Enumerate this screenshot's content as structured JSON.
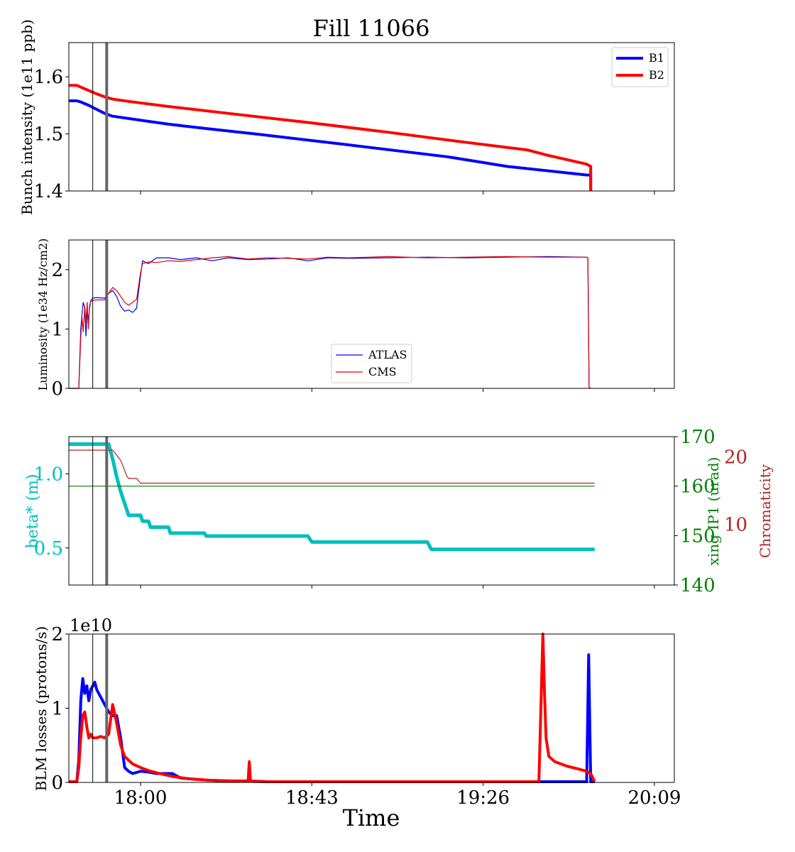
{
  "figure": {
    "title": "Fill 11066",
    "xlabel": "Time"
  },
  "x_axis": {
    "tick_labels": [
      "18:00",
      "18:43",
      "19:26",
      "20:09"
    ],
    "tick_minutes": [
      48,
      91,
      134,
      177
    ]
  },
  "colors": {
    "b1": "#0000ff",
    "b2": "#ff0000",
    "atlas": "#0000ff",
    "cms": "#dd0000",
    "beta": "#00bfbf",
    "xing": "#008000",
    "chroma": "#b22222",
    "marker_thin": "#000000",
    "marker_thick": "#666666"
  },
  "chart_data": [
    {
      "type": "line",
      "ylabel": "Bunch intensity (1e11 ppb)",
      "ylim": [
        1.4,
        1.66
      ],
      "yticks": [
        1.4,
        1.5,
        1.6
      ],
      "ytick_labels": [
        "1.4",
        "1.5",
        "1.6"
      ],
      "legend": {
        "placement": "top-right",
        "entries": [
          "B1",
          "B2"
        ]
      },
      "series": [
        {
          "name": "B1",
          "x": [
            30,
            32,
            33,
            35,
            37,
            39,
            41,
            45,
            49,
            55,
            65,
            78,
            100,
            125,
            133,
            140,
            160,
            161,
            161
          ],
          "y": [
            1.558,
            1.558,
            1.556,
            1.55,
            1.543,
            1.536,
            1.531,
            1.527,
            1.523,
            1.517,
            1.509,
            1.499,
            1.481,
            1.46,
            1.451,
            1.443,
            1.428,
            1.428,
            1.4
          ]
        },
        {
          "name": "B2",
          "x": [
            30,
            32,
            33,
            35,
            37,
            39,
            41,
            45,
            55,
            70,
            90,
            110,
            130,
            145,
            150,
            160,
            161,
            161
          ],
          "y": [
            1.585,
            1.585,
            1.582,
            1.576,
            1.57,
            1.565,
            1.561,
            1.557,
            1.548,
            1.536,
            1.52,
            1.503,
            1.485,
            1.472,
            1.463,
            1.447,
            1.443,
            1.4
          ]
        }
      ]
    },
    {
      "type": "line",
      "ylabel": "Luminosity (1e34 Hz/cm2)",
      "ylim": [
        0,
        2.5
      ],
      "yticks": [
        0,
        1,
        2
      ],
      "ytick_labels": [
        "0",
        "1",
        "2"
      ],
      "legend": {
        "placement": "lower-center",
        "entries": [
          "ATLAS",
          "CMS"
        ]
      },
      "series": [
        {
          "name": "ATLAS",
          "x": [
            30,
            32.5,
            33,
            33.3,
            33.6,
            34,
            34.3,
            34.6,
            34.9,
            35.2,
            35.5,
            36,
            37,
            39,
            40,
            41,
            42,
            43,
            44,
            45,
            46,
            47,
            48,
            48.5,
            50,
            52,
            55,
            58,
            62,
            66,
            70,
            75,
            80,
            85,
            90,
            95,
            100,
            110,
            120,
            130,
            140,
            150,
            160,
            160.3,
            160.6,
            161
          ],
          "y": [
            0,
            0,
            1.0,
            1.25,
            1.45,
            1.35,
            0.88,
            1.3,
            1.15,
            1.35,
            1.48,
            1.52,
            1.53,
            1.52,
            1.6,
            1.65,
            1.55,
            1.38,
            1.3,
            1.32,
            1.28,
            1.35,
            1.9,
            2.15,
            2.1,
            2.2,
            2.2,
            2.17,
            2.2,
            2.15,
            2.2,
            2.17,
            2.18,
            2.2,
            2.15,
            2.2,
            2.19,
            2.2,
            2.21,
            2.2,
            2.21,
            2.22,
            2.21,
            2.2,
            0.02,
            0
          ]
        },
        {
          "name": "CMS",
          "x": [
            30,
            32.5,
            33,
            33.3,
            33.6,
            34,
            34.3,
            34.6,
            34.9,
            35.2,
            35.5,
            36,
            37,
            39,
            40,
            41,
            42,
            43,
            44,
            45,
            46,
            47,
            48,
            48.5,
            50,
            52,
            55,
            58,
            62,
            66,
            70,
            75,
            80,
            85,
            90,
            95,
            100,
            110,
            120,
            130,
            140,
            150,
            160,
            160.3,
            160.6,
            161
          ],
          "y": [
            0,
            0,
            0.85,
            1.2,
            0.95,
            1.38,
            1.1,
            1.45,
            1.0,
            1.4,
            1.46,
            1.48,
            1.49,
            1.49,
            1.6,
            1.7,
            1.65,
            1.55,
            1.45,
            1.4,
            1.45,
            1.5,
            1.95,
            2.1,
            2.13,
            2.12,
            2.15,
            2.14,
            2.17,
            2.2,
            2.22,
            2.18,
            2.2,
            2.19,
            2.18,
            2.21,
            2.2,
            2.22,
            2.2,
            2.21,
            2.22,
            2.21,
            2.21,
            2.2,
            0.02,
            0
          ]
        }
      ]
    },
    {
      "type": "line",
      "ylabel": "beta* (m)",
      "ylim": [
        0.25,
        1.25
      ],
      "yticks": [
        0.5,
        1.0
      ],
      "ytick_labels": [
        "0.5",
        "1.0"
      ],
      "secondary_axes": [
        {
          "label": "xing IP1 (urad)",
          "ylim": [
            140,
            170
          ],
          "yticks": [
            140,
            150,
            160,
            170
          ],
          "ytick_labels": [
            "140",
            "150",
            "160",
            "170"
          ]
        },
        {
          "label": "Chromaticity",
          "ylim": [
            1,
            23
          ],
          "yticks": [
            10,
            20
          ],
          "ytick_labels": [
            "10",
            "20"
          ]
        }
      ],
      "series": [
        {
          "name": "beta*",
          "axis": "left",
          "x": [
            30,
            40,
            41,
            42,
            43,
            44,
            45,
            45.5,
            48,
            48.5,
            50,
            50.5,
            55,
            55.5,
            64,
            64.5,
            72,
            82,
            90,
            91,
            110,
            120,
            121,
            150,
            162
          ],
          "y": [
            1.2,
            1.2,
            1.1,
            0.98,
            0.88,
            0.8,
            0.72,
            0.72,
            0.72,
            0.68,
            0.68,
            0.64,
            0.64,
            0.6,
            0.6,
            0.58,
            0.58,
            0.58,
            0.58,
            0.54,
            0.54,
            0.54,
            0.49,
            0.49,
            0.49
          ]
        },
        {
          "name": "xing IP1",
          "axis": "right-1",
          "x": [
            30,
            162
          ],
          "y": [
            160,
            160
          ]
        },
        {
          "name": "Chromaticity",
          "axis": "right-2",
          "x": [
            30,
            41,
            43,
            44,
            44.5,
            45,
            47,
            48,
            162
          ],
          "y": [
            21,
            21,
            19.5,
            18,
            17.2,
            16.8,
            16.8,
            16.1,
            16.1
          ]
        }
      ]
    },
    {
      "type": "line",
      "ylabel": "BLM losses (protons/s)",
      "offset_text": "1e10",
      "ylim": [
        0,
        2
      ],
      "yticks": [
        0,
        1,
        2
      ],
      "ytick_labels": [
        "0",
        "1",
        "2"
      ],
      "series": [
        {
          "name": "B1",
          "x": [
            30,
            32,
            32.5,
            33,
            33.5,
            34,
            34.5,
            35,
            35.5,
            36,
            36.5,
            37,
            38,
            39,
            40,
            41,
            42,
            43,
            44,
            45,
            46,
            48,
            50,
            52,
            56,
            58,
            60,
            62,
            65,
            70,
            80,
            100,
            130,
            160,
            160.5,
            161,
            161.5,
            162
          ],
          "y": [
            0.01,
            0.01,
            0.3,
            1.1,
            1.4,
            1.2,
            1.3,
            1.1,
            1.25,
            1.3,
            1.35,
            1.25,
            1.15,
            1.05,
            0.95,
            0.9,
            0.9,
            0.6,
            0.2,
            0.15,
            0.12,
            0.15,
            0.14,
            0.12,
            0.12,
            0.06,
            0.05,
            0.04,
            0.03,
            0.02,
            0.01,
            0.01,
            0.01,
            0.01,
            1.72,
            0.01,
            0.01,
            0.01
          ]
        },
        {
          "name": "B2",
          "x": [
            30,
            32,
            32.5,
            33,
            33.5,
            34,
            34.5,
            35,
            35.5,
            36,
            37,
            38,
            39,
            40,
            41,
            42,
            43,
            44,
            45,
            46,
            48,
            50,
            52,
            56,
            60,
            65,
            70,
            75,
            75.3,
            75.6,
            80,
            100,
            120,
            148,
            149,
            149.4,
            149.8,
            150.5,
            152,
            155,
            158,
            160,
            161,
            162
          ],
          "y": [
            0.01,
            0.01,
            0.2,
            0.6,
            0.9,
            0.95,
            0.75,
            0.6,
            0.65,
            0.6,
            0.6,
            0.62,
            0.6,
            0.65,
            1.05,
            0.8,
            0.5,
            0.35,
            0.3,
            0.25,
            0.2,
            0.16,
            0.13,
            0.08,
            0.05,
            0.03,
            0.02,
            0.02,
            0.28,
            0.02,
            0.01,
            0.01,
            0.01,
            0.01,
            2.0,
            1.2,
            0.6,
            0.35,
            0.28,
            0.22,
            0.18,
            0.15,
            0.12,
            0.01
          ]
        }
      ]
    }
  ],
  "markers": {
    "thin_minute": 36,
    "thick_minute": 39.5
  }
}
